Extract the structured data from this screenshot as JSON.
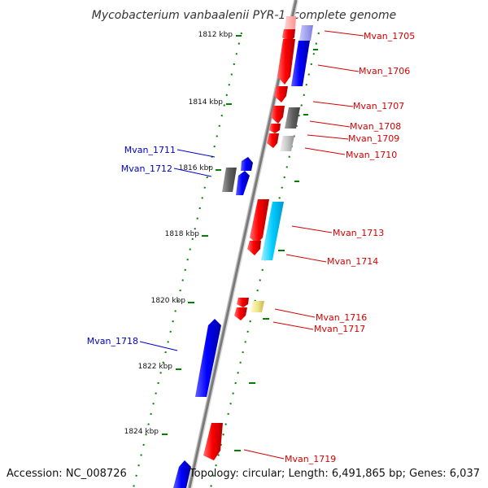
{
  "title": "Mycobacterium vanbaalenii PYR-1, complete genome",
  "footer": {
    "accession": "Accession: NC_008726",
    "topology": "Topology: circular; Length: 6,491,865 bp; Genes: 6,037"
  },
  "kbp_labels": [
    "1812 kbp",
    "1814 kbp",
    "1816 kbp",
    "1818 kbp",
    "1820 kbp",
    "1822 kbp",
    "1824 kbp"
  ],
  "genes": [
    {
      "name": "Mvan_1705",
      "strand": "right"
    },
    {
      "name": "Mvan_1706",
      "strand": "right"
    },
    {
      "name": "Mvan_1707",
      "strand": "right"
    },
    {
      "name": "Mvan_1708",
      "strand": "right"
    },
    {
      "name": "Mvan_1709",
      "strand": "right"
    },
    {
      "name": "Mvan_1710",
      "strand": "right"
    },
    {
      "name": "Mvan_1711",
      "strand": "left"
    },
    {
      "name": "Mvan_1712",
      "strand": "left"
    },
    {
      "name": "Mvan_1713",
      "strand": "right"
    },
    {
      "name": "Mvan_1714",
      "strand": "right"
    },
    {
      "name": "Mvan_1716",
      "strand": "right"
    },
    {
      "name": "Mvan_1717",
      "strand": "right"
    },
    {
      "name": "Mvan_1718",
      "strand": "left"
    },
    {
      "name": "Mvan_1719",
      "strand": "right"
    }
  ],
  "colors": {
    "forward_gene": "#ff0000",
    "reverse_gene": "#0000ff",
    "label_forward": "#d40000",
    "label_reverse": "#0000c8",
    "backbone": "#808080",
    "tick": "#008000"
  }
}
